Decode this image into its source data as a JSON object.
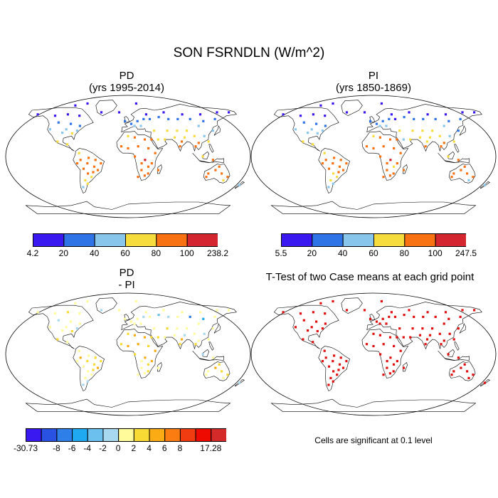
{
  "figure": {
    "title": "SON FSRNDLN (W/m^2)",
    "significance_note": "Cells are significant at 0.1 level"
  },
  "panels": {
    "pd": {
      "title": "PD",
      "subtitle": "(yrs 1995-2014)"
    },
    "pi": {
      "title": "PI",
      "subtitle": "(yrs 1850-1869)"
    },
    "diff": {
      "title": "PD",
      "subtitle": "- PI"
    },
    "ttest": {
      "title": "T-Test of two Case means at each grid point"
    }
  },
  "colorbars": {
    "pd": {
      "labels": [
        "4.2",
        "20",
        "40",
        "60",
        "80",
        "100",
        "238.2"
      ],
      "colors": [
        "#3a18f0",
        "#2f74e6",
        "#88c6ec",
        "#f6dc3c",
        "#f87214",
        "#d3262e"
      ]
    },
    "pi": {
      "labels": [
        "5.5",
        "20",
        "40",
        "60",
        "80",
        "100",
        "247.5"
      ],
      "colors": [
        "#3a18f0",
        "#2f74e6",
        "#88c6ec",
        "#f6dc3c",
        "#f87214",
        "#d3262e"
      ]
    },
    "diff": {
      "labels": [
        "-30.73",
        "",
        "-8",
        "-6",
        "-4",
        "-2",
        "0",
        "2",
        "4",
        "6",
        "8",
        "",
        "17.28"
      ],
      "colors": [
        "#3a18f0",
        "#2a52e2",
        "#2f7fe8",
        "#1ea9f0",
        "#6cc0ee",
        "#a8d8f0",
        "#fffa9a",
        "#f8da34",
        "#fbac14",
        "#fb7c10",
        "#f03c10",
        "#ee0a00",
        "#d42a2a"
      ]
    }
  },
  "marker_colors": {
    "ttest": "#e01010"
  }
}
